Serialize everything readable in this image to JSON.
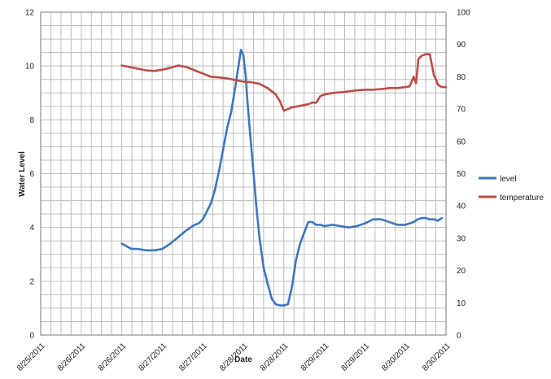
{
  "chart_data": {
    "type": "line",
    "title": "",
    "xlabel": "Date",
    "ylabel": "Water Level",
    "y2label": "",
    "xlim": [
      "8/25/2011",
      "8/30/2011"
    ],
    "ylim": [
      0,
      12
    ],
    "y2lim": [
      0,
      100
    ],
    "y_ticks": [
      0,
      2,
      4,
      6,
      8,
      10,
      12
    ],
    "y2_ticks": [
      0,
      10,
      20,
      30,
      40,
      50,
      60,
      70,
      80,
      90,
      100
    ],
    "x_tick_labels": [
      "8/25/2011",
      "8/26/2011",
      "8/26/2011",
      "8/27/2011",
      "8/27/2011",
      "8/28/2011",
      "8/28/2011",
      "8/29/2011",
      "8/29/2011",
      "8/30/2011",
      "8/30/2011"
    ],
    "grid": true,
    "legend_position": "right",
    "series": [
      {
        "name": "level",
        "axis": "left",
        "color": "#3f75be",
        "x_days": [
          1.0,
          1.06,
          1.12,
          1.2,
          1.3,
          1.4,
          1.5,
          1.6,
          1.7,
          1.8,
          1.9,
          1.95,
          2.0,
          2.05,
          2.1,
          2.15,
          2.2,
          2.25,
          2.3,
          2.35,
          2.4,
          2.45,
          2.47,
          2.5,
          2.53,
          2.55,
          2.58,
          2.62,
          2.66,
          2.7,
          2.75,
          2.8,
          2.85,
          2.9,
          2.95,
          3.0,
          3.05,
          3.1,
          3.15,
          3.2,
          3.25,
          3.3,
          3.35,
          3.4,
          3.45,
          3.5,
          3.6,
          3.7,
          3.8,
          3.9,
          4.0,
          4.1,
          4.2,
          4.3,
          4.4,
          4.5,
          4.6,
          4.65,
          4.7,
          4.75,
          4.8,
          4.85,
          4.9,
          4.95
        ],
        "values": [
          3.4,
          3.3,
          3.2,
          3.2,
          3.15,
          3.15,
          3.2,
          3.4,
          3.65,
          3.9,
          4.1,
          4.15,
          4.3,
          4.6,
          4.9,
          5.4,
          6.1,
          6.9,
          7.7,
          8.3,
          9.2,
          10.2,
          10.6,
          10.4,
          9.6,
          8.7,
          7.6,
          6.2,
          4.8,
          3.6,
          2.5,
          1.9,
          1.35,
          1.15,
          1.1,
          1.1,
          1.15,
          1.8,
          2.8,
          3.4,
          3.8,
          4.2,
          4.2,
          4.1,
          4.1,
          4.05,
          4.1,
          4.05,
          4.0,
          4.05,
          4.15,
          4.3,
          4.3,
          4.2,
          4.1,
          4.1,
          4.2,
          4.3,
          4.35,
          4.35,
          4.3,
          4.3,
          4.25,
          4.35
        ]
      },
      {
        "name": "temperature",
        "axis": "right",
        "color": "#bf4a47",
        "x_days": [
          1.0,
          1.1,
          1.2,
          1.3,
          1.4,
          1.5,
          1.6,
          1.7,
          1.8,
          1.9,
          2.0,
          2.1,
          2.2,
          2.3,
          2.4,
          2.5,
          2.6,
          2.7,
          2.8,
          2.9,
          2.95,
          3.0,
          3.05,
          3.1,
          3.2,
          3.3,
          3.35,
          3.4,
          3.45,
          3.5,
          3.6,
          3.7,
          3.8,
          3.9,
          4.0,
          4.1,
          4.2,
          4.3,
          4.4,
          4.5,
          4.55,
          4.6,
          4.63,
          4.66,
          4.7,
          4.75,
          4.8,
          4.85,
          4.88,
          4.9,
          4.95,
          5.0
        ],
        "values": [
          83.5,
          83.0,
          82.5,
          82.0,
          81.8,
          82.2,
          82.8,
          83.5,
          83.0,
          82.0,
          81.0,
          80.0,
          79.8,
          79.5,
          79.0,
          78.5,
          78.3,
          77.8,
          76.5,
          74.5,
          72.5,
          69.5,
          70.0,
          70.5,
          71.0,
          71.5,
          72.0,
          72.0,
          74.0,
          74.5,
          75.0,
          75.2,
          75.5,
          75.8,
          76.0,
          76.0,
          76.2,
          76.5,
          76.5,
          76.8,
          77.0,
          80.0,
          78.0,
          85.5,
          86.5,
          87.0,
          87.0,
          80.5,
          79.0,
          77.5,
          76.8,
          76.8
        ]
      }
    ]
  }
}
